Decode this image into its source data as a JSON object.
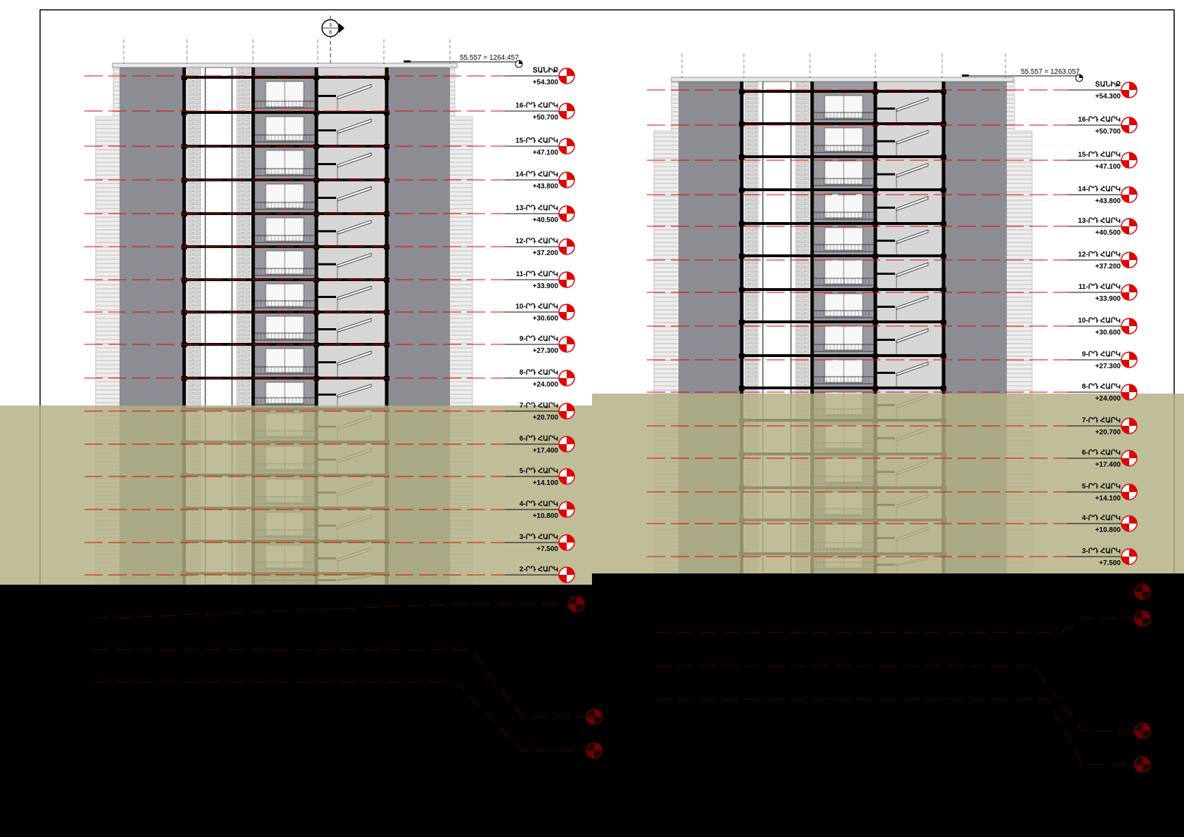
{
  "colors": {
    "paper": "#ffffff",
    "night": "#000000",
    "ground": "#b1b083",
    "wall": "#111111",
    "masonry": "#8c8c93",
    "facade": "#d8d8d8",
    "level_line": "#e00000",
    "marker_red": "#e00000"
  },
  "sections": [
    {
      "id": "left",
      "elevation_label": "55.557 = 1264.457",
      "levels": [
        {
          "name": "ՏԱՆԻՔ",
          "value": "+54.300"
        },
        {
          "name": "16-ՐԴ ՀԱՐԿ",
          "value": "+50.700"
        },
        {
          "name": "15-ՐԴ ՀԱՐԿ",
          "value": "+47.100"
        },
        {
          "name": "14-ՐԴ ՀԱՐԿ",
          "value": "+43.800"
        },
        {
          "name": "13-ՐԴ ՀԱՐԿ",
          "value": "+40.500"
        },
        {
          "name": "12-ՐԴ ՀԱՐԿ",
          "value": "+37.200"
        },
        {
          "name": "11-ՐԴ ՀԱՐԿ",
          "value": "+33.900"
        },
        {
          "name": "10-ՐԴ ՀԱՐԿ",
          "value": "+30.600"
        },
        {
          "name": "9-ՐԴ ՀԱՐԿ",
          "value": "+27.300"
        },
        {
          "name": "8-ՐԴ ՀԱՐԿ",
          "value": "+24.000"
        },
        {
          "name": "7-ՐԴ ՀԱՐԿ",
          "value": "+20.700"
        },
        {
          "name": "6-ՐԴ ՀԱՐԿ",
          "value": "+17.400"
        },
        {
          "name": "5-ՐԴ ՀԱՐԿ",
          "value": "+14.100"
        },
        {
          "name": "4-ՐԴ ՀԱՐԿ",
          "value": "+10.800"
        },
        {
          "name": "3-ՐԴ ՀԱՐԿ",
          "value": "+7.500"
        },
        {
          "name": "2-ՐԴ ՀԱՐԿ",
          "value": ""
        }
      ]
    },
    {
      "id": "right",
      "elevation_label": "55.557 = 1263.057",
      "levels": [
        {
          "name": "ՏԱՆԻՔ",
          "value": "+54.300"
        },
        {
          "name": "16-ՐԴ ՀԱՐԿ",
          "value": "+50.700"
        },
        {
          "name": "15-ՐԴ ՀԱՐԿ",
          "value": "+47.100"
        },
        {
          "name": "14-ՐԴ ՀԱՐԿ",
          "value": "+43.800"
        },
        {
          "name": "13-ՐԴ ՀԱՐԿ",
          "value": "+40.500"
        },
        {
          "name": "12-ՐԴ ՀԱՐԿ",
          "value": "+37.200"
        },
        {
          "name": "11-ՐԴ ՀԱՐԿ",
          "value": "+33.900"
        },
        {
          "name": "10-ՐԴ ՀԱՐԿ",
          "value": "+30.600"
        },
        {
          "name": "9-ՐԴ ՀԱՐԿ",
          "value": "+27.300"
        },
        {
          "name": "8-ՐԴ ՀԱՐԿ",
          "value": "+24.000"
        },
        {
          "name": "7-ՐԴ ՀԱՐԿ",
          "value": "+20.700"
        },
        {
          "name": "6-ՐԴ ՀԱՐԿ",
          "value": "+17.400"
        },
        {
          "name": "5-ՐԴ ՀԱՐԿ",
          "value": "+14.100"
        },
        {
          "name": "4-ՐԴ ՀԱՐԿ",
          "value": "+10.800"
        },
        {
          "name": "3-ՐԴ ՀԱՐԿ",
          "value": "+7.500"
        }
      ]
    }
  ],
  "section_marker": {
    "top": "3",
    "bottom": "8"
  }
}
